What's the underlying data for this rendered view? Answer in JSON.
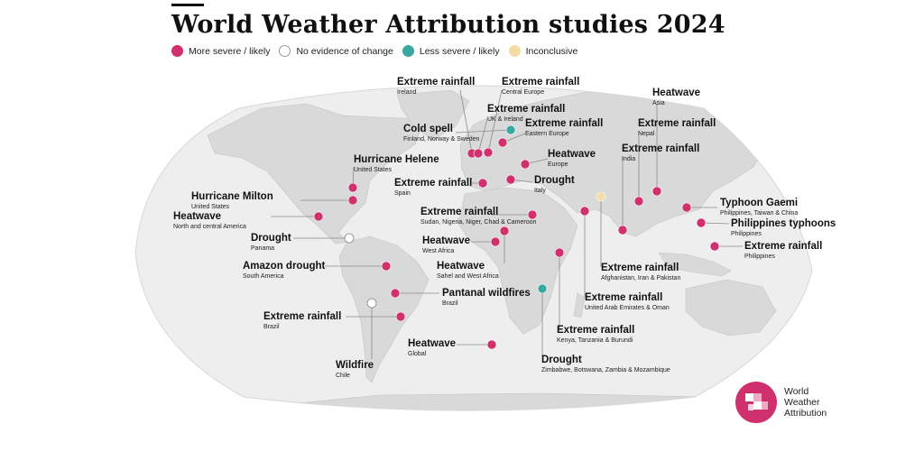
{
  "title": "World Weather Attribution studies 2024",
  "colors": {
    "more": "#d1306e",
    "none": "#ffffff",
    "less": "#3aa8a0",
    "inconclusive": "#f4dca8",
    "land": "#dcdcdc",
    "ocean": "#efefef",
    "leader": "#8a8a8a"
  },
  "legend": {
    "more": "More severe / likely",
    "none": "No evidence of change",
    "less": "Less severe / likely",
    "inconclusive": "Inconclusive"
  },
  "events": [
    {
      "key": "ireland",
      "title": "Extreme rainfall",
      "sub": "Ireland",
      "status": "more"
    },
    {
      "key": "central_europe",
      "title": "Extreme rainfall",
      "sub": "Central Europe",
      "status": "more"
    },
    {
      "key": "uk",
      "title": "Extreme rainfall",
      "sub": "UK & Ireland",
      "status": "more"
    },
    {
      "key": "cold_spell",
      "title": "Cold spell",
      "sub": "Finland, Norway & Sweden",
      "status": "less"
    },
    {
      "key": "eastern_europe",
      "title": "Extreme rainfall",
      "sub": "Eastern Europe",
      "status": "more"
    },
    {
      "key": "heatwave_europe",
      "title": "Heatwave",
      "sub": "Europe",
      "status": "more"
    },
    {
      "key": "spain",
      "title": "Extreme rainfall",
      "sub": "Spain",
      "status": "more"
    },
    {
      "key": "drought_italy",
      "title": "Drought",
      "sub": "Italy",
      "status": "more"
    },
    {
      "key": "helene",
      "title": "Hurricane Helene",
      "sub": "United States",
      "status": "more"
    },
    {
      "key": "milton",
      "title": "Hurricane Milton",
      "sub": "United States",
      "status": "more"
    },
    {
      "key": "heat_na",
      "title": "Heatwave",
      "sub": "North and central America",
      "status": "more"
    },
    {
      "key": "drought_panama",
      "title": "Drought",
      "sub": "Panama",
      "status": "none"
    },
    {
      "key": "amazon",
      "title": "Amazon drought",
      "sub": "South America",
      "status": "more"
    },
    {
      "key": "pantanal",
      "title": "Pantanal wildfires",
      "sub": "Brazil",
      "status": "more"
    },
    {
      "key": "rain_brazil",
      "title": "Extreme rainfall",
      "sub": "Brazil",
      "status": "more"
    },
    {
      "key": "wildfire_chile",
      "title": "Wildfire",
      "sub": "Chile",
      "status": "none"
    },
    {
      "key": "heat_global",
      "title": "Heatwave",
      "sub": "Global",
      "status": "more"
    },
    {
      "key": "sudan",
      "title": "Extreme rainfall",
      "sub": "Sudan, Nigeria, Niger, Chad & Cameroon",
      "status": "more"
    },
    {
      "key": "heat_west_africa",
      "title": "Heatwave",
      "sub": "West Africa",
      "status": "more"
    },
    {
      "key": "heat_sahel",
      "title": "Heatwave",
      "sub": "Sahel and West Africa",
      "status": "more"
    },
    {
      "key": "kenya",
      "title": "Extreme rainfall",
      "sub": "Kenya, Tanzania & Burundi",
      "status": "more"
    },
    {
      "key": "drought_zim",
      "title": "Drought",
      "sub": "Zimbabwe, Botswana, Zambia & Mozambique",
      "status": "less"
    },
    {
      "key": "uae",
      "title": "Extreme rainfall",
      "sub": "United Arab Emirates & Oman",
      "status": "more"
    },
    {
      "key": "afghanistan",
      "title": "Extreme rainfall",
      "sub": "Afghanistan, Iran & Pakistan",
      "status": "inconclusive"
    },
    {
      "key": "heat_asia",
      "title": "Heatwave",
      "sub": "Asia",
      "status": "more"
    },
    {
      "key": "nepal",
      "title": "Extreme rainfall",
      "sub": "Nepal",
      "status": "more"
    },
    {
      "key": "india",
      "title": "Extreme rainfall",
      "sub": "India",
      "status": "more"
    },
    {
      "key": "gaemi",
      "title": "Typhoon Gaemi",
      "sub": "Philippines, Taiwan & China",
      "status": "more"
    },
    {
      "key": "ph_typhoons",
      "title": "Philippines typhoons",
      "sub": "Philippines",
      "status": "more"
    },
    {
      "key": "ph_rain",
      "title": "Extreme rainfall",
      "sub": "Philippines",
      "status": "more"
    }
  ],
  "logo": {
    "line1": "World",
    "line2": "Weather",
    "line3": "Attribution"
  }
}
